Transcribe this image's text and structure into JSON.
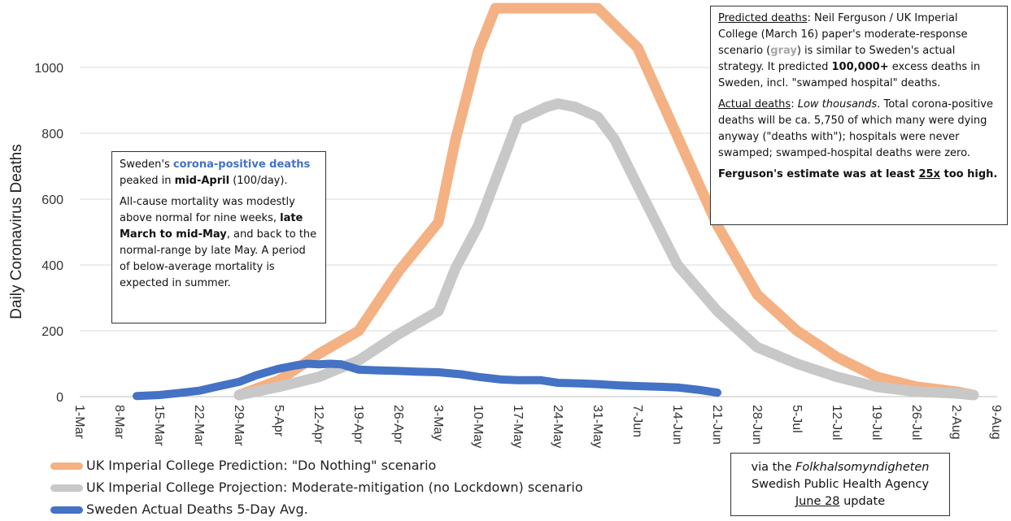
{
  "chart_data": {
    "type": "line",
    "ylabel": "Daily  Coronavirus Deaths",
    "xlabel": "",
    "ylim": [
      0,
      1180
    ],
    "yticks": [
      0,
      200,
      400,
      600,
      800,
      1000
    ],
    "x_tick_labels": [
      "1-Mar",
      "8-Mar",
      "15-Mar",
      "22-Mar",
      "29-Mar",
      "5-Apr",
      "12-Apr",
      "19-Apr",
      "26-Apr",
      "3-May",
      "10-May",
      "17-May",
      "24-May",
      "31-May",
      "7-Jun",
      "14-Jun",
      "21-Jun",
      "28-Jun",
      "5-Jul",
      "12-Jul",
      "19-Jul",
      "26-Jul",
      "2-Aug",
      "9-Aug"
    ],
    "grid": true,
    "legend_position": "bottom-left",
    "series": [
      {
        "name": "UK Imperial College Prediction: \"Do Nothing\" scenario",
        "color": "#f4b183",
        "points": [
          [
            "29-Mar",
            5
          ],
          [
            "5-Apr",
            50
          ],
          [
            "12-Apr",
            130
          ],
          [
            "19-Apr",
            200
          ],
          [
            "26-Apr",
            380
          ],
          [
            "3-May",
            530
          ],
          [
            "6-May",
            780
          ],
          [
            "10-May",
            1050
          ],
          [
            "13-May",
            1200
          ],
          [
            "31-May",
            1200
          ],
          [
            "7-Jun",
            1060
          ],
          [
            "14-Jun",
            790
          ],
          [
            "21-Jun",
            520
          ],
          [
            "28-Jun",
            310
          ],
          [
            "5-Jul",
            200
          ],
          [
            "12-Jul",
            120
          ],
          [
            "19-Jul",
            60
          ],
          [
            "26-Jul",
            30
          ],
          [
            "2-Aug",
            15
          ],
          [
            "5-Aug",
            5
          ]
        ]
      },
      {
        "name": "UK Imperial College Projection: Moderate-mitigation (no Lockdown) scenario",
        "color": "#c8c8c8",
        "points": [
          [
            "29-Mar",
            5
          ],
          [
            "5-Apr",
            30
          ],
          [
            "12-Apr",
            60
          ],
          [
            "19-Apr",
            110
          ],
          [
            "26-Apr",
            190
          ],
          [
            "3-May",
            260
          ],
          [
            "6-May",
            390
          ],
          [
            "10-May",
            520
          ],
          [
            "17-May",
            840
          ],
          [
            "22-May",
            880
          ],
          [
            "24-May",
            890
          ],
          [
            "27-May",
            880
          ],
          [
            "31-May",
            850
          ],
          [
            "3-Jun",
            780
          ],
          [
            "7-Jun",
            640
          ],
          [
            "14-Jun",
            400
          ],
          [
            "21-Jun",
            260
          ],
          [
            "28-Jun",
            150
          ],
          [
            "5-Jul",
            100
          ],
          [
            "12-Jul",
            60
          ],
          [
            "19-Jul",
            30
          ],
          [
            "26-Jul",
            15
          ],
          [
            "2-Aug",
            10
          ],
          [
            "5-Aug",
            5
          ]
        ]
      },
      {
        "name": "Sweden Actual Deaths 5-Day Avg.",
        "color": "#4472c4",
        "points": [
          [
            "11-Mar",
            2
          ],
          [
            "15-Mar",
            5
          ],
          [
            "18-Mar",
            10
          ],
          [
            "22-Mar",
            18
          ],
          [
            "25-Mar",
            30
          ],
          [
            "29-Mar",
            45
          ],
          [
            "1-Apr",
            65
          ],
          [
            "5-Apr",
            85
          ],
          [
            "8-Apr",
            95
          ],
          [
            "10-Apr",
            100
          ],
          [
            "12-Apr",
            98
          ],
          [
            "14-Apr",
            100
          ],
          [
            "16-Apr",
            98
          ],
          [
            "19-Apr",
            82
          ],
          [
            "22-Apr",
            80
          ],
          [
            "26-Apr",
            78
          ],
          [
            "29-Apr",
            76
          ],
          [
            "3-May",
            74
          ],
          [
            "7-May",
            68
          ],
          [
            "10-May",
            60
          ],
          [
            "14-May",
            52
          ],
          [
            "17-May",
            50
          ],
          [
            "21-May",
            50
          ],
          [
            "24-May",
            42
          ],
          [
            "28-May",
            40
          ],
          [
            "31-May",
            38
          ],
          [
            "4-Jun",
            34
          ],
          [
            "7-Jun",
            32
          ],
          [
            "11-Jun",
            30
          ],
          [
            "14-Jun",
            28
          ],
          [
            "18-Jun",
            20
          ],
          [
            "21-Jun",
            12
          ]
        ]
      }
    ]
  },
  "legend": {
    "do_nothing": "UK Imperial College Prediction: \"Do Nothing\" scenario",
    "moderate": "UK Imperial College Projection: Moderate-mitigation (no Lockdown) scenario",
    "actual": "Sweden Actual Deaths 5-Day Avg."
  },
  "sweden_box": {
    "p1_a": "Sweden's ",
    "p1_b": "corona-positive deaths",
    "p1_c": " peaked in ",
    "p1_d": "mid-April",
    "p1_e": " (100/day).",
    "p2_a": "All-cause mortality was modestly above normal for nine weeks, ",
    "p2_b": "late March to mid-May",
    "p2_c": ", and back to the normal-range by late May. A period of below-average mortality is expected  in summer."
  },
  "ferguson_box": {
    "h1": "Predicted deaths",
    "t1": ": Neil Ferguson / UK Imperial College (March 16) paper's moderate-response scenario (",
    "gray": "gray",
    "t2": ") is similar to Sweden's actual strategy. It predicted ",
    "num": "100,000+",
    "t3": " excess deaths in Sweden, incl. \"swamped hospital\" deaths.",
    "h2": "Actual deaths",
    "t4": ": ",
    "low": "Low thousands",
    "t5": ". Total corona-positive deaths will be ca. 5,750 of which many were dying anyway (\"deaths with\"); hospitals were never swamped; swamped-hospital deaths were zero.",
    "c1": "Ferguson's estimate was at least ",
    "c2": "25x",
    "c3": " too high",
    "c4": "."
  },
  "source_box": {
    "l1_a": "via the ",
    "l1_b": "Folkhalsomyndigheten",
    "l2": "Swedish Public Health Agency",
    "l3_a": "June 28",
    "l3_b": " update"
  }
}
